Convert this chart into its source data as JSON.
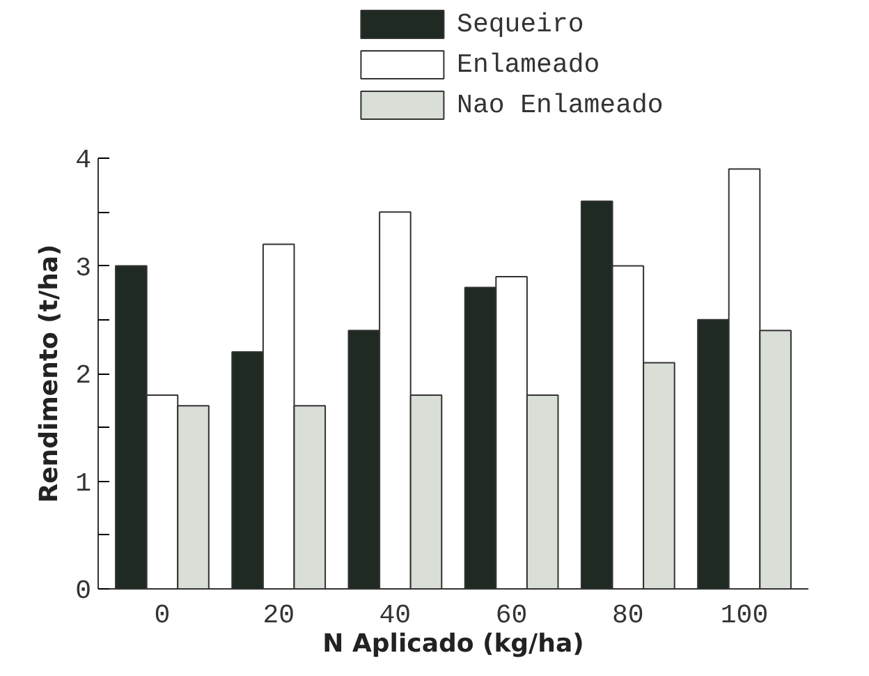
{
  "chart_data": {
    "type": "bar",
    "xlabel": "N Aplicado (kg/ha)",
    "ylabel": "Rendimento (t/ha)",
    "categories": [
      "0",
      "20",
      "40",
      "60",
      "80",
      "100"
    ],
    "series": [
      {
        "name": "Sequeiro",
        "color": "#1f2a22",
        "values": [
          3.0,
          2.2,
          2.4,
          2.8,
          3.6,
          2.5
        ]
      },
      {
        "name": "Enlameado",
        "color": "#ffffff",
        "values": [
          1.8,
          3.2,
          3.5,
          2.9,
          3.0,
          3.9
        ]
      },
      {
        "name": "Nao Enlameado",
        "color": "#d9ded6",
        "values": [
          1.7,
          1.7,
          1.8,
          1.8,
          2.1,
          2.4
        ]
      }
    ],
    "ylim": [
      0,
      4
    ],
    "yticks": [
      0,
      {
        "value": 0.5,
        "label": null
      },
      1,
      {
        "value": 1.5,
        "label": null
      },
      2,
      {
        "value": 2.5,
        "label": null
      },
      3,
      {
        "value": 3.5,
        "label": null
      },
      4
    ],
    "grid": false,
    "legend": "top"
  }
}
